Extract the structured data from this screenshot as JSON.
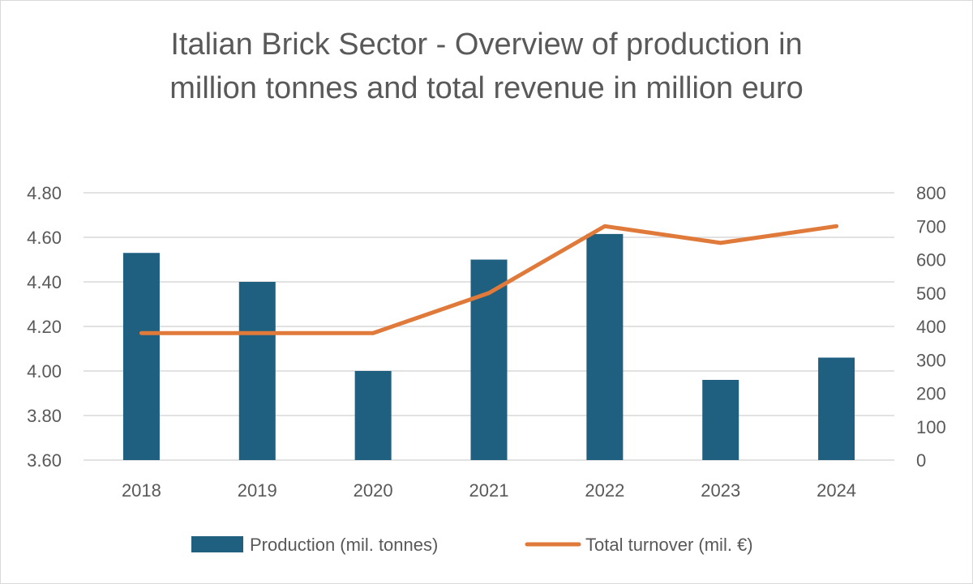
{
  "chart_data": {
    "type": "bar",
    "title_lines": [
      "Italian Brick Sector - Overview of production in",
      "million tonnes and total revenue in million euro"
    ],
    "categories": [
      "2018",
      "2019",
      "2020",
      "2021",
      "2022",
      "2023",
      "2024"
    ],
    "series": [
      {
        "name": "Production (mil. tonnes)",
        "type": "bar",
        "axis": "left",
        "color": "#1f5f80",
        "values": [
          4.53,
          4.4,
          4.0,
          4.5,
          4.615,
          3.96,
          4.06
        ]
      },
      {
        "name": "Total turnover (mil. €)",
        "type": "line",
        "axis": "right",
        "color": "#e07a3b",
        "values": [
          380,
          380,
          380,
          500,
          700,
          650,
          700
        ]
      }
    ],
    "y_left": {
      "min": 3.6,
      "max": 4.8,
      "ticks": [
        "3.60",
        "3.80",
        "4.00",
        "4.20",
        "4.40",
        "4.60",
        "4.80"
      ]
    },
    "y_right": {
      "min": 0,
      "max": 800,
      "ticks": [
        "0",
        "100",
        "200",
        "300",
        "400",
        "500",
        "600",
        "700",
        "800"
      ]
    },
    "grid": true,
    "legend_position": "bottom"
  }
}
